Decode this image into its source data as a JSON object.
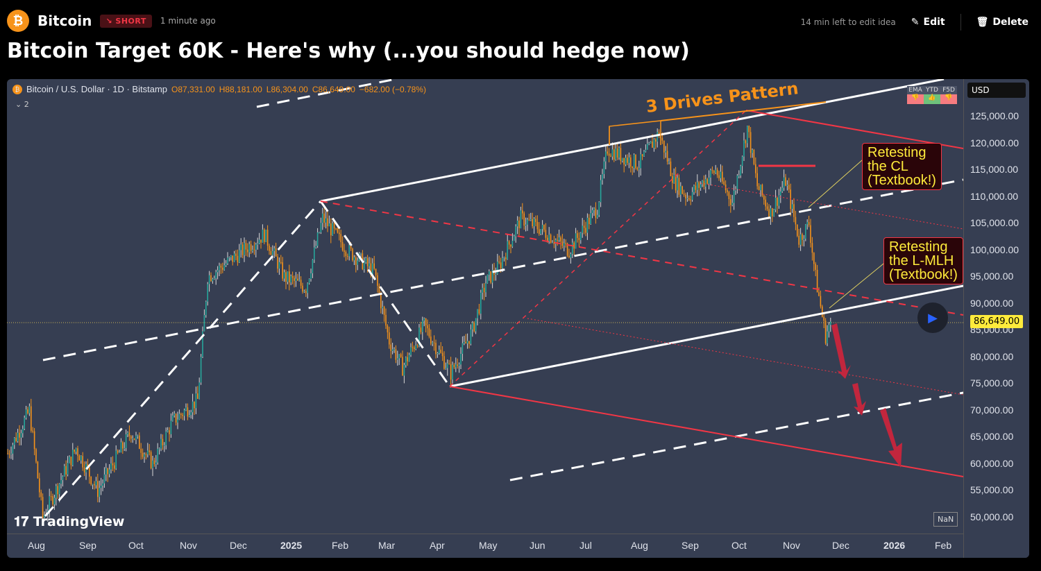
{
  "header": {
    "symbol": "Bitcoin",
    "badge": "↘ SHORT",
    "time_ago": "1 minute ago",
    "edit_notice": "14 min left to edit idea",
    "edit": "Edit",
    "delete": "Delete",
    "title": "Bitcoin Target 60K - Here's why (...you should hedge now)"
  },
  "legend": {
    "name": "Bitcoin / U.S. Dollar · 1D · Bitstamp",
    "o": "O87,331.00",
    "h": "H88,181.00",
    "l": "L86,304.00",
    "c": "C86,649.00",
    "chg": "−682.00 (−0.78%)",
    "collapse": "⌄ 2"
  },
  "signals": {
    "headers": [
      "EMA",
      "YTD",
      "F5D"
    ],
    "colors": [
      "#f77c80",
      "#6fc27b",
      "#f77c80"
    ]
  },
  "axis": {
    "currency": "USD",
    "current_price": "86,649.00",
    "y_ticks": [
      "125,000.00",
      "120,000.00",
      "115,000.00",
      "110,000.00",
      "105,000.00",
      "100,000.00",
      "95,000.00",
      "90,000.00",
      "85,000.00",
      "80,000.00",
      "75,000.00",
      "70,000.00",
      "65,000.00",
      "60,000.00",
      "55,000.00",
      "50,000.00"
    ],
    "x_ticks": [
      "Aug",
      "Sep",
      "Oct",
      "Nov",
      "Dec",
      "2025",
      "Feb",
      "Mar",
      "Apr",
      "May",
      "Jun",
      "Jul",
      "Aug",
      "Sep",
      "Oct",
      "Nov",
      "Dec",
      "2026",
      "Feb"
    ],
    "nan": "NaN"
  },
  "annotations": {
    "pattern": "3 Drives Pattern",
    "note1": [
      "Retesting",
      "the CL",
      "(Textbook!)"
    ],
    "note2": [
      "Retesting",
      "the L-MLH",
      "(Textbook!)"
    ]
  },
  "brand": "TradingView",
  "chart_data": {
    "type": "candlestick",
    "anchors_days_since_2024_08_01": [
      -17,
      -4,
      4,
      24,
      37,
      57,
      70,
      82,
      97,
      103,
      116,
      137,
      149,
      162,
      172,
      187,
      203,
      212,
      220,
      233,
      249,
      262,
      270,
      278,
      291,
      303,
      320,
      337,
      343,
      362,
      374,
      383,
      391,
      408,
      418,
      427,
      433,
      441,
      450,
      458,
      464,
      468,
      474,
      477
    ],
    "anchor_prices": [
      62000,
      70000,
      50000,
      63000,
      55000,
      66000,
      60000,
      68000,
      72000,
      95000,
      98000,
      103000,
      95000,
      93000,
      106000,
      100000,
      96000,
      83000,
      78000,
      86000,
      77000,
      85000,
      94000,
      97000,
      106000,
      104000,
      100000,
      108000,
      119000,
      116000,
      122000,
      113000,
      110000,
      115000,
      109000,
      123000,
      112000,
      107000,
      113000,
      102000,
      105000,
      95000,
      84000,
      86649
    ],
    "ylim": [
      50000,
      125000
    ]
  }
}
